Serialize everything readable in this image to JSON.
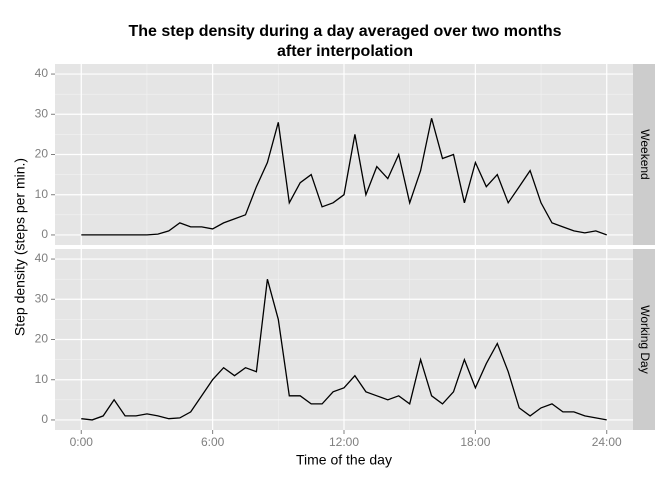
{
  "chart_data": {
    "type": "line",
    "title": "The step density during a day averaged over two months",
    "subtitle": "after interpolation",
    "xlabel": "Time of the day",
    "ylabel": "Step density (steps per min.)",
    "color": "#000000",
    "grid": true,
    "x": [
      0,
      0.5,
      1,
      1.5,
      2,
      2.5,
      3,
      3.5,
      4,
      4.5,
      5,
      5.5,
      6,
      6.5,
      7,
      7.5,
      8,
      8.5,
      9,
      9.5,
      10,
      10.5,
      11,
      11.5,
      12,
      12.5,
      13,
      13.5,
      14,
      14.5,
      15,
      15.5,
      16,
      16.5,
      17,
      17.5,
      18,
      18.5,
      19,
      19.5,
      20,
      20.5,
      21,
      21.5,
      22,
      22.5,
      23,
      23.5,
      24
    ],
    "xlim": [
      -1.2,
      25.2
    ],
    "xticks": [
      {
        "value": 0,
        "label": "0:00"
      },
      {
        "value": 6,
        "label": "6:00"
      },
      {
        "value": 12,
        "label": "12:00"
      },
      {
        "value": 18,
        "label": "18:00"
      },
      {
        "value": 24,
        "label": "24:00"
      }
    ],
    "ylim": [
      -2.5,
      42.5
    ],
    "yticks": [
      0,
      10,
      20,
      30,
      40
    ],
    "facets": [
      {
        "label": "Weekend",
        "values": [
          0,
          0,
          0,
          0,
          0,
          0,
          0,
          0.2,
          1,
          3,
          2,
          2,
          1.5,
          3,
          4,
          5,
          12,
          18,
          28,
          8,
          13,
          15,
          7,
          8,
          10,
          25,
          10,
          17,
          14,
          20,
          8,
          16,
          29,
          19,
          20,
          8,
          18,
          12,
          15,
          8,
          12,
          16,
          8,
          3,
          2,
          1,
          0.5,
          1,
          0
        ]
      },
      {
        "label": "Working Day",
        "values": [
          0.3,
          0,
          1,
          5,
          1,
          1,
          1.5,
          1,
          0.3,
          0.5,
          2,
          6,
          10,
          13,
          11,
          13,
          12,
          35,
          25,
          6,
          6,
          4,
          4,
          7,
          8,
          11,
          7,
          6,
          5,
          6,
          4,
          15,
          6,
          4,
          7,
          15,
          8,
          14,
          19,
          12,
          3,
          1,
          3,
          4,
          2,
          2,
          1,
          0.5,
          0
        ]
      }
    ]
  }
}
